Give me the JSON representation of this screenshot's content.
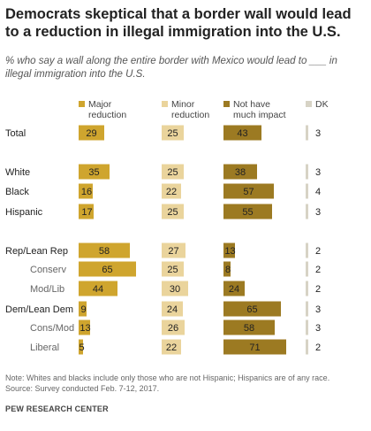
{
  "title": "Democrats skeptical that a border wall would lead to a reduction in illegal immigration into the U.S.",
  "subtitle": "% who say a wall along the entire border with Mexico would lead to ___ in illegal immigration into the U.S.",
  "note": "Note: Whites and blacks include only those who are not Hispanic; Hispanics are of any race.",
  "source_line": "Source: Survey conducted Feb. 7-12, 2017.",
  "footer": "PEW RESEARCH CENTER",
  "colors": {
    "major_reduction": "#cfa52e",
    "minor_reduction": "#ead49c",
    "not_much_impact": "#9c7a22",
    "dk": "#d7d3c5"
  },
  "chart_data": {
    "type": "bar",
    "stacking": "separate-columns",
    "legend_position": "top",
    "categories": [
      "Total",
      "White",
      "Black",
      "Hispanic",
      "Rep/Lean Rep",
      "Conserv",
      "Mod/Lib",
      "Dem/Lean Dem",
      "Cons/Mod",
      "Liberal"
    ],
    "category_indent": [
      false,
      false,
      false,
      false,
      false,
      true,
      true,
      false,
      true,
      true
    ],
    "series": [
      {
        "name": "Major reduction",
        "values": [
          29,
          35,
          16,
          17,
          58,
          65,
          44,
          9,
          13,
          5
        ]
      },
      {
        "name": "Minor reduction",
        "values": [
          25,
          25,
          22,
          25,
          27,
          25,
          30,
          24,
          26,
          22
        ]
      },
      {
        "name": "Not have much impact",
        "values": [
          43,
          38,
          57,
          55,
          13,
          8,
          24,
          65,
          58,
          71
        ]
      },
      {
        "name": "DK",
        "values": [
          3,
          3,
          4,
          3,
          2,
          2,
          2,
          3,
          3,
          2
        ]
      }
    ]
  }
}
